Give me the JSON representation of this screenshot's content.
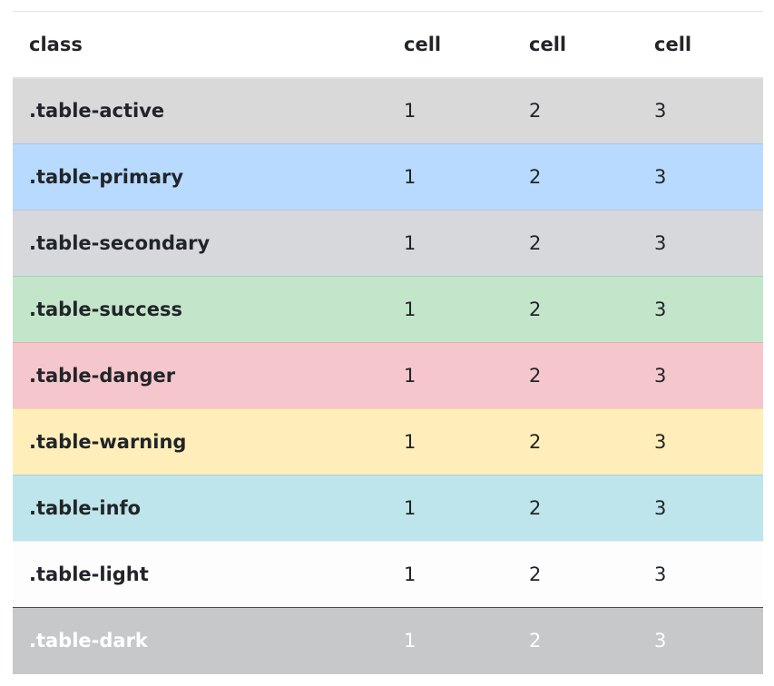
{
  "table": {
    "headers": [
      "class",
      "cell",
      "cell",
      "cell"
    ],
    "rows": [
      {
        "label": ".table-active",
        "cells": [
          "1",
          "2",
          "3"
        ],
        "bg": "#d9d9d9",
        "border": "#c8c8c8",
        "text": "#212529"
      },
      {
        "label": ".table-primary",
        "cells": [
          "1",
          "2",
          "3"
        ],
        "bg": "#b8daff",
        "border": "#9fc7f5",
        "text": "#212529"
      },
      {
        "label": ".table-secondary",
        "cells": [
          "1",
          "2",
          "3"
        ],
        "bg": "#d6d8db",
        "border": "#c3c6ca",
        "text": "#212529"
      },
      {
        "label": ".table-success",
        "cells": [
          "1",
          "2",
          "3"
        ],
        "bg": "#c3e6cb",
        "border": "#9fd4ac",
        "text": "#212529"
      },
      {
        "label": ".table-danger",
        "cells": [
          "1",
          "2",
          "3"
        ],
        "bg": "#f5c6cb",
        "border": "#eda7af",
        "text": "#212529"
      },
      {
        "label": ".table-warning",
        "cells": [
          "1",
          "2",
          "3"
        ],
        "bg": "#ffeeba",
        "border": "#f3dd96",
        "text": "#212529"
      },
      {
        "label": ".table-info",
        "cells": [
          "1",
          "2",
          "3"
        ],
        "bg": "#bee5eb",
        "border": "#a0d6df",
        "text": "#212529"
      },
      {
        "label": ".table-light",
        "cells": [
          "1",
          "2",
          "3"
        ],
        "bg": "#fdfdfe",
        "border": "#ececf6",
        "text": "#212529"
      },
      {
        "label": ".table-dark",
        "cells": [
          "1",
          "2",
          "3"
        ],
        "bg": "#c6c8ca",
        "border": "#4a4a4a",
        "text": "#ffffff"
      }
    ]
  }
}
